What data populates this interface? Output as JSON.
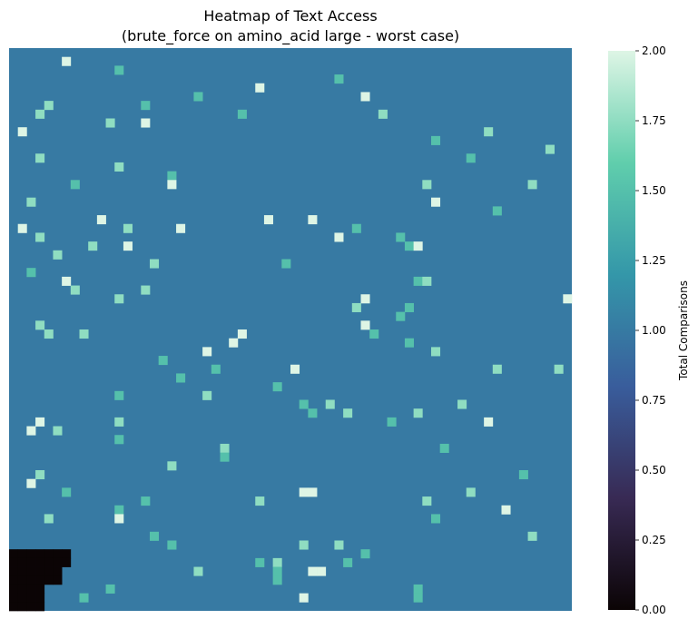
{
  "chart_data": {
    "type": "heatmap",
    "title": "Heatmap of Text Access",
    "subtitle": "(brute_force on amino_acid large - worst case)",
    "colorbar_label": "Total Comparisons",
    "colorbar_ticks": [
      "0.00",
      "0.25",
      "0.50",
      "0.75",
      "1.00",
      "1.25",
      "1.50",
      "1.75",
      "2.00"
    ],
    "vmin": 0,
    "vmax": 2,
    "colormap": "mako",
    "colormap_stops": [
      "#0b0405",
      "#382a54",
      "#395d9c",
      "#3497a9",
      "#60ceac",
      "#def5e5"
    ],
    "grid": {
      "rows": 64,
      "cols": 64,
      "default_value": 1
    },
    "zero_cells_note": "unused trailing cells at the bottom-left (value 0)",
    "zero_cells_rows": [
      {
        "row": 57,
        "cols": [
          0,
          6
        ]
      },
      {
        "row": 58,
        "cols": [
          0,
          6
        ]
      },
      {
        "row": 59,
        "cols": [
          0,
          5
        ]
      },
      {
        "row": 60,
        "cols": [
          0,
          5
        ]
      },
      {
        "row": 61,
        "cols": [
          0,
          3
        ]
      },
      {
        "row": 62,
        "cols": [
          0,
          3
        ]
      },
      {
        "row": 63,
        "cols": [
          0,
          3
        ]
      }
    ],
    "cells_value_2": [
      [
        1,
        6
      ],
      [
        4,
        28
      ],
      [
        5,
        40
      ],
      [
        8,
        15
      ],
      [
        9,
        1
      ],
      [
        15,
        18
      ],
      [
        17,
        48
      ],
      [
        19,
        10
      ],
      [
        19,
        29
      ],
      [
        19,
        34
      ],
      [
        20,
        1
      ],
      [
        20,
        19
      ],
      [
        21,
        37
      ],
      [
        22,
        13
      ],
      [
        22,
        46
      ],
      [
        26,
        6
      ],
      [
        28,
        40
      ],
      [
        28,
        63
      ],
      [
        31,
        40
      ],
      [
        32,
        26
      ],
      [
        33,
        25
      ],
      [
        34,
        22
      ],
      [
        36,
        32
      ],
      [
        42,
        3
      ],
      [
        42,
        54
      ],
      [
        43,
        2
      ],
      [
        49,
        2
      ],
      [
        50,
        33
      ],
      [
        50,
        34
      ],
      [
        52,
        56
      ],
      [
        53,
        12
      ],
      [
        59,
        34
      ],
      [
        59,
        35
      ],
      [
        62,
        33
      ]
    ],
    "cells_value_1_75": [
      [
        6,
        4
      ],
      [
        7,
        3
      ],
      [
        7,
        42
      ],
      [
        8,
        11
      ],
      [
        9,
        54
      ],
      [
        11,
        61
      ],
      [
        12,
        3
      ],
      [
        13,
        12
      ],
      [
        15,
        47
      ],
      [
        15,
        59
      ],
      [
        17,
        2
      ],
      [
        20,
        13
      ],
      [
        21,
        3
      ],
      [
        22,
        9
      ],
      [
        23,
        5
      ],
      [
        24,
        16
      ],
      [
        26,
        47
      ],
      [
        27,
        7
      ],
      [
        27,
        15
      ],
      [
        28,
        12
      ],
      [
        29,
        39
      ],
      [
        31,
        3
      ],
      [
        32,
        4
      ],
      [
        32,
        8
      ],
      [
        34,
        48
      ],
      [
        36,
        55
      ],
      [
        36,
        62
      ],
      [
        39,
        22
      ],
      [
        40,
        36
      ],
      [
        40,
        51
      ],
      [
        41,
        38
      ],
      [
        41,
        46
      ],
      [
        42,
        12
      ],
      [
        43,
        5
      ],
      [
        45,
        24
      ],
      [
        47,
        18
      ],
      [
        48,
        3
      ],
      [
        50,
        52
      ],
      [
        51,
        28
      ],
      [
        51,
        47
      ],
      [
        53,
        4
      ],
      [
        55,
        59
      ],
      [
        56,
        33
      ],
      [
        56,
        37
      ],
      [
        58,
        30
      ],
      [
        59,
        21
      ]
    ],
    "cells_value_1_5": [
      [
        2,
        12
      ],
      [
        3,
        37
      ],
      [
        5,
        21
      ],
      [
        6,
        15
      ],
      [
        7,
        26
      ],
      [
        10,
        48
      ],
      [
        12,
        52
      ],
      [
        14,
        18
      ],
      [
        15,
        7
      ],
      [
        18,
        55
      ],
      [
        20,
        39
      ],
      [
        21,
        44
      ],
      [
        22,
        45
      ],
      [
        24,
        31
      ],
      [
        25,
        2
      ],
      [
        26,
        46
      ],
      [
        29,
        45
      ],
      [
        30,
        44
      ],
      [
        32,
        41
      ],
      [
        33,
        45
      ],
      [
        35,
        17
      ],
      [
        36,
        23
      ],
      [
        37,
        19
      ],
      [
        38,
        30
      ],
      [
        39,
        12
      ],
      [
        40,
        33
      ],
      [
        41,
        34
      ],
      [
        42,
        43
      ],
      [
        44,
        12
      ],
      [
        45,
        49
      ],
      [
        46,
        24
      ],
      [
        48,
        58
      ],
      [
        50,
        6
      ],
      [
        51,
        15
      ],
      [
        52,
        12
      ],
      [
        53,
        48
      ],
      [
        55,
        16
      ],
      [
        56,
        18
      ],
      [
        57,
        40
      ],
      [
        58,
        28
      ],
      [
        58,
        38
      ],
      [
        59,
        30
      ],
      [
        60,
        30
      ],
      [
        61,
        11
      ],
      [
        61,
        46
      ],
      [
        62,
        8
      ],
      [
        62,
        46
      ]
    ]
  }
}
